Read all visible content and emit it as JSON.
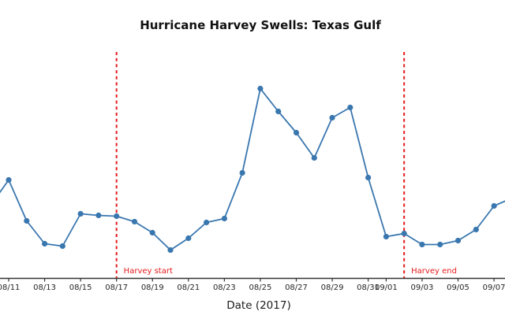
{
  "chart_data": {
    "type": "line",
    "title": "Hurricane Harvey Swells: Texas Gulf",
    "xlabel": "Date (2017)",
    "ylabel": "",
    "y_axis_visible": false,
    "grid": false,
    "legend": false,
    "units_note": "no y-axis shown; values are relative swell heights estimated from pixel positions",
    "x": [
      "08/10",
      "08/11",
      "08/12",
      "08/13",
      "08/14",
      "08/15",
      "08/16",
      "08/17",
      "08/18",
      "08/19",
      "08/20",
      "08/21",
      "08/22",
      "08/23",
      "08/24",
      "08/25",
      "08/26",
      "08/27",
      "08/28",
      "08/29",
      "08/30",
      "08/31",
      "09/01",
      "09/02",
      "09/03",
      "09/04",
      "09/05",
      "09/06",
      "09/07",
      "09/08"
    ],
    "series": [
      {
        "name": "swell",
        "values": [
          93,
          125,
          73,
          44,
          41,
          82,
          80,
          79,
          72,
          58,
          36,
          51,
          71,
          76,
          134,
          241,
          212,
          185,
          153,
          204,
          217,
          128,
          53,
          57,
          43,
          43,
          48,
          62,
          92,
          102
        ]
      }
    ],
    "edge_points_offscreen": [
      "08/10",
      "09/08"
    ],
    "x_tick_labels": [
      "08/11",
      "08/13",
      "08/15",
      "08/17",
      "08/19",
      "08/21",
      "08/23",
      "08/25",
      "08/27",
      "08/29",
      "08/31",
      "09/01",
      "09/03",
      "09/05",
      "09/07"
    ],
    "annotations": [
      {
        "type": "vline",
        "date": "08/17",
        "label": "Harvey start"
      },
      {
        "type": "vline",
        "date": "09/02",
        "label": "Harvey end"
      }
    ],
    "ylim_relative": [
      0,
      300
    ],
    "colors": {
      "line": "#3a77af",
      "marker": "#3a77af",
      "annotation": "#e41a1c",
      "axis": "#333333",
      "tick_label": "#262626",
      "title": "#111111"
    }
  }
}
